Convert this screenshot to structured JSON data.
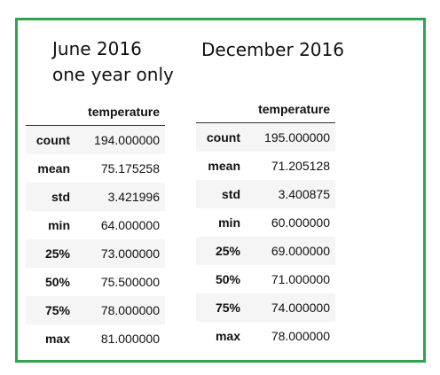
{
  "panels": [
    {
      "title_line1": "June 2016",
      "title_line2": "one year only",
      "column_header": "temperature",
      "rows": [
        {
          "label": "count",
          "value": "194.000000"
        },
        {
          "label": "mean",
          "value": "75.175258"
        },
        {
          "label": "std",
          "value": "3.421996"
        },
        {
          "label": "min",
          "value": "64.000000"
        },
        {
          "label": "25%",
          "value": "73.000000"
        },
        {
          "label": "50%",
          "value": "75.500000"
        },
        {
          "label": "75%",
          "value": "78.000000"
        },
        {
          "label": "max",
          "value": "81.000000"
        }
      ]
    },
    {
      "title_line1": "December 2016",
      "column_header": "temperature",
      "rows": [
        {
          "label": "count",
          "value": "195.000000"
        },
        {
          "label": "mean",
          "value": "71.205128"
        },
        {
          "label": "std",
          "value": "3.400875"
        },
        {
          "label": "min",
          "value": "60.000000"
        },
        {
          "label": "25%",
          "value": "69.000000"
        },
        {
          "label": "50%",
          "value": "71.000000"
        },
        {
          "label": "75%",
          "value": "74.000000"
        },
        {
          "label": "max",
          "value": "78.000000"
        }
      ]
    }
  ],
  "colors": {
    "frame_border": "#2ea44f",
    "row_stripe": "#f5f5f5"
  }
}
